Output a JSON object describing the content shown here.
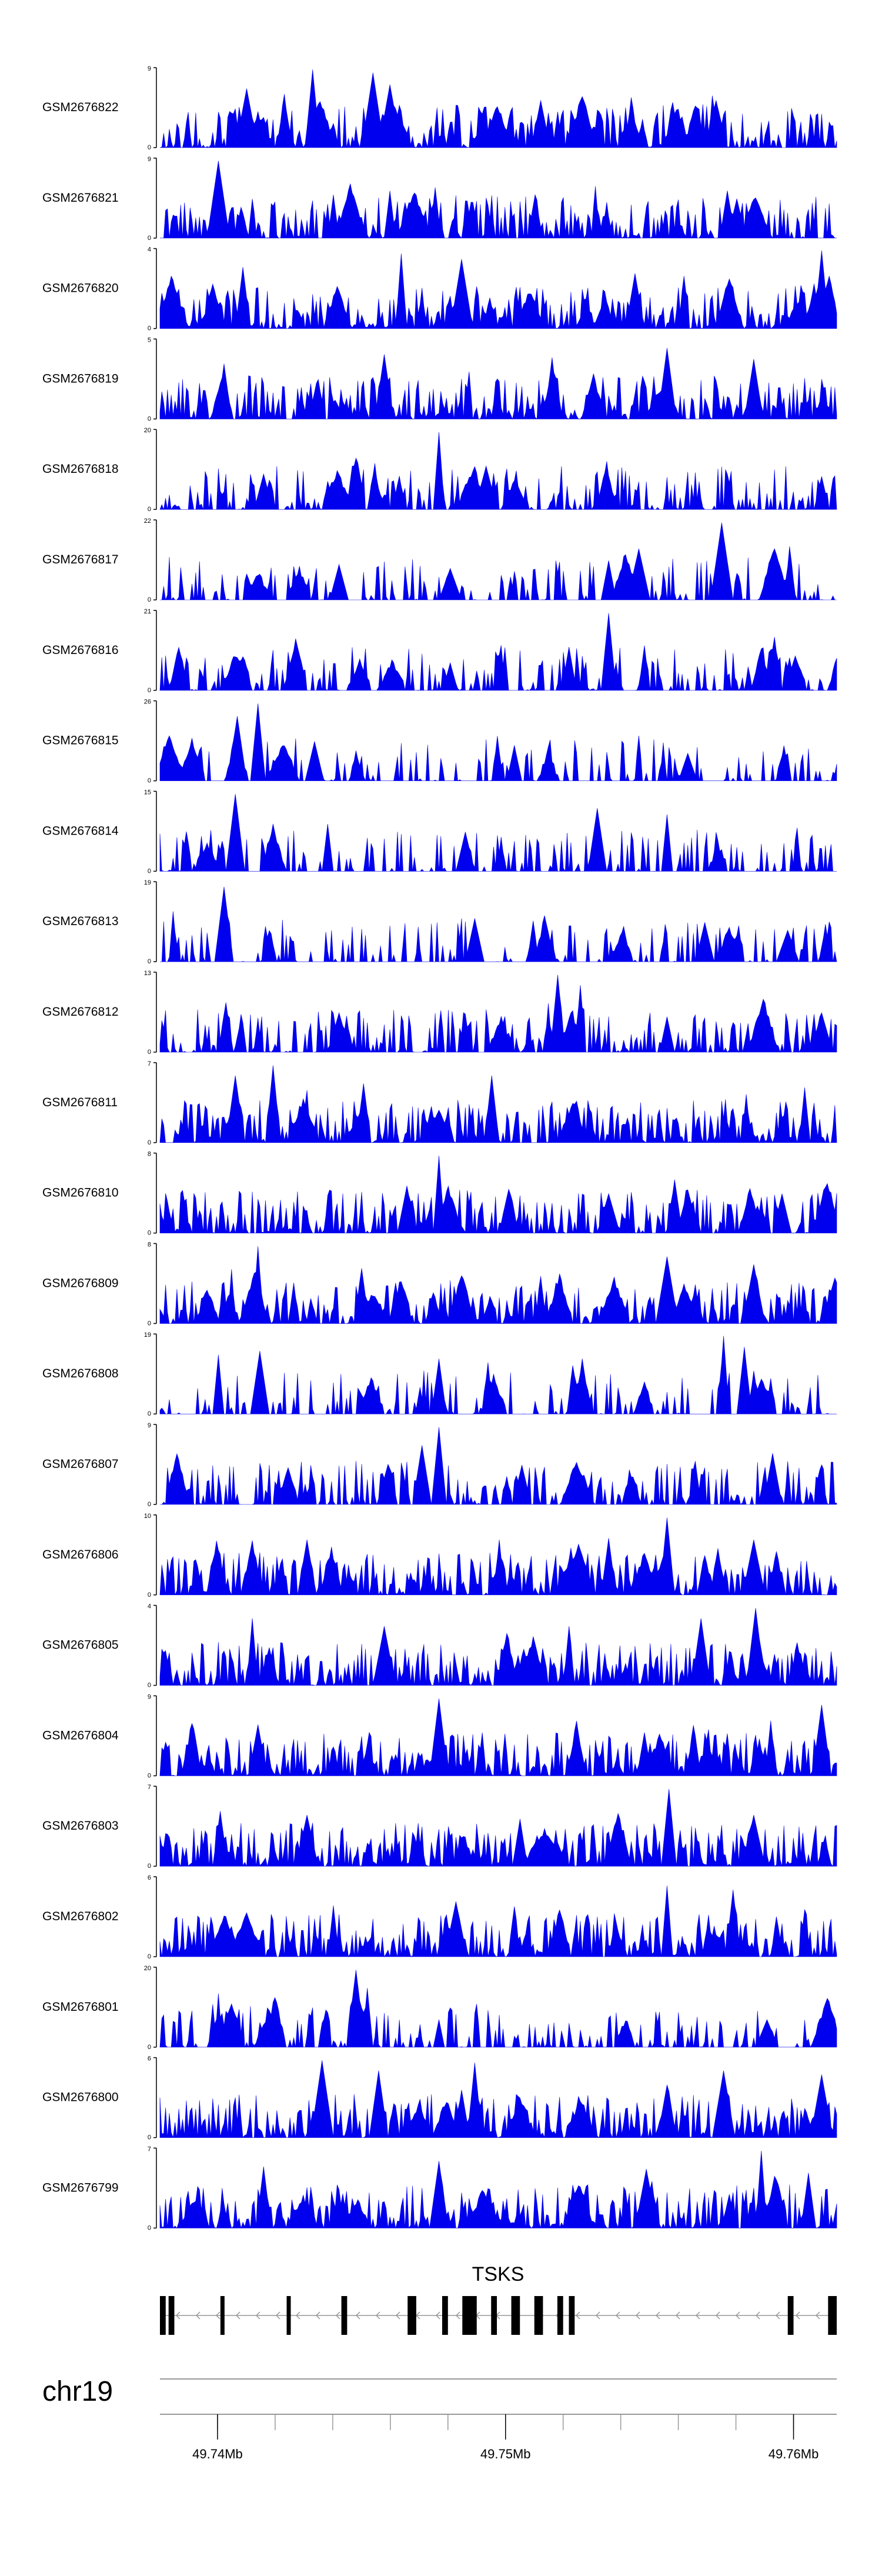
{
  "chart_data": {
    "type": "area",
    "chromosome": "chr19",
    "gene": {
      "name": "TSKS",
      "strand": "-"
    },
    "genomic_axis": {
      "range_mb": [
        49.738,
        49.7615
      ],
      "tick_labels": [
        {
          "pos": 49.74,
          "label": "49.74Mb"
        },
        {
          "pos": 49.75,
          "label": "49.75Mb"
        },
        {
          "pos": 49.76,
          "label": "49.76Mb"
        }
      ],
      "minor_ticks_mb": [
        49.74,
        49.742,
        49.744,
        49.746,
        49.748,
        49.75,
        49.752,
        49.754,
        49.756,
        49.758,
        49.76
      ]
    },
    "exons_mb": [
      [
        49.738,
        49.7382
      ],
      [
        49.7383,
        49.7385
      ],
      [
        49.7401,
        49.7402
      ],
      [
        49.7424,
        49.7425
      ],
      [
        49.7443,
        49.7445
      ],
      [
        49.7466,
        49.7469
      ],
      [
        49.7478,
        49.748
      ],
      [
        49.7485,
        49.749
      ],
      [
        49.7495,
        49.7497
      ],
      [
        49.7502,
        49.7505
      ],
      [
        49.751,
        49.7513
      ],
      [
        49.7518,
        49.752
      ],
      [
        49.7522,
        49.7524
      ],
      [
        49.7598,
        49.76
      ],
      [
        49.7612,
        49.7615
      ]
    ],
    "tracks": [
      {
        "name": "GSM2676822",
        "ymax": "9",
        "ymin": "0",
        "seed": 822,
        "density": 0.85,
        "peaks": [
          [
            49.7433,
            0.99
          ],
          [
            49.7454,
            0.95
          ],
          [
            49.746,
            0.8
          ],
          [
            49.741,
            0.75
          ],
          [
            49.7512,
            0.6
          ],
          [
            49.7573,
            0.6
          ]
        ]
      },
      {
        "name": "GSM2676821",
        "ymax": "9",
        "ymin": "0",
        "seed": 821,
        "density": 0.8,
        "peaks": [
          [
            49.74,
            0.98
          ],
          [
            49.746,
            0.6
          ],
          [
            49.744,
            0.55
          ],
          [
            49.751,
            0.55
          ],
          [
            49.758,
            0.5
          ]
        ]
      },
      {
        "name": "GSM2676820",
        "ymax": "4",
        "ymin": "0",
        "seed": 820,
        "density": 0.95,
        "peaks": [
          [
            49.761,
            0.99
          ],
          [
            49.7464,
            0.95
          ],
          [
            49.7485,
            0.88
          ],
          [
            49.7409,
            0.78
          ],
          [
            49.7545,
            0.7
          ]
        ]
      },
      {
        "name": "GSM2676819",
        "ymax": "5",
        "ymin": "0",
        "seed": 819,
        "density": 0.9,
        "peaks": [
          [
            49.7556,
            0.9
          ],
          [
            49.7458,
            0.82
          ],
          [
            49.7516,
            0.78
          ],
          [
            49.7586,
            0.76
          ],
          [
            49.7402,
            0.7
          ]
        ]
      },
      {
        "name": "GSM2676818",
        "ymax": "20",
        "ymin": "0",
        "seed": 818,
        "density": 0.55,
        "peaks": [
          [
            49.7477,
            0.98
          ],
          [
            49.7447,
            0.55
          ],
          [
            49.7493,
            0.55
          ],
          [
            49.7416,
            0.45
          ],
          [
            49.761,
            0.42
          ]
        ]
      },
      {
        "name": "GSM2676817",
        "ymax": "22",
        "ymin": "0",
        "seed": 817,
        "density": 0.35,
        "peaks": [
          [
            49.7575,
            0.98
          ],
          [
            49.7546,
            0.65
          ],
          [
            49.7536,
            0.5
          ],
          [
            49.7442,
            0.45
          ],
          [
            49.7481,
            0.4
          ]
        ]
      },
      {
        "name": "GSM2676816",
        "ymax": "21",
        "ymin": "0",
        "seed": 816,
        "density": 0.5,
        "peaks": [
          [
            49.7536,
            0.98
          ],
          [
            49.7522,
            0.55
          ],
          [
            49.7409,
            0.35
          ],
          [
            49.7481,
            0.35
          ]
        ]
      },
      {
        "name": "GSM2676815",
        "ymax": "26",
        "ymin": "0",
        "seed": 815,
        "density": 0.3,
        "peaks": [
          [
            49.7414,
            0.98
          ],
          [
            49.7407,
            0.82
          ],
          [
            49.7434,
            0.5
          ],
          [
            49.7503,
            0.45
          ],
          [
            49.7563,
            0.35
          ]
        ]
      },
      {
        "name": "GSM2676814",
        "ymax": "15",
        "ymin": "0",
        "seed": 814,
        "density": 0.45,
        "peaks": [
          [
            49.7406,
            0.98
          ],
          [
            49.7532,
            0.8
          ],
          [
            49.7556,
            0.72
          ],
          [
            49.7438,
            0.6
          ],
          [
            49.7486,
            0.5
          ]
        ]
      },
      {
        "name": "GSM2676813",
        "ymax": "19",
        "ymin": "0",
        "seed": 813,
        "density": 0.35,
        "peaks": [
          [
            49.7402,
            0.95
          ],
          [
            49.7489,
            0.55
          ],
          [
            49.7541,
            0.45
          ],
          [
            49.7569,
            0.5
          ],
          [
            49.7598,
            0.4
          ]
        ]
      },
      {
        "name": "GSM2676812",
        "ymax": "13",
        "ymin": "0",
        "seed": 812,
        "density": 0.6,
        "peaks": [
          [
            49.7518,
            0.98
          ],
          [
            49.7526,
            0.85
          ],
          [
            49.761,
            0.5
          ],
          [
            49.7442,
            0.5
          ],
          [
            49.7556,
            0.45
          ]
        ]
      },
      {
        "name": "GSM2676811",
        "ymax": "7",
        "ymin": "0",
        "seed": 811,
        "density": 0.85,
        "peaks": [
          [
            49.7419,
            0.98
          ],
          [
            49.7406,
            0.85
          ],
          [
            49.7495,
            0.85
          ],
          [
            49.7451,
            0.75
          ],
          [
            49.7604,
            0.7
          ]
        ]
      },
      {
        "name": "GSM2676810",
        "ymax": "8",
        "ymin": "0",
        "seed": 810,
        "density": 0.85,
        "peaks": [
          [
            49.7477,
            0.98
          ],
          [
            49.7466,
            0.6
          ],
          [
            49.7563,
            0.55
          ],
          [
            49.7536,
            0.5
          ],
          [
            49.7596,
            0.5
          ]
        ]
      },
      {
        "name": "GSM2676809",
        "ymax": "8",
        "ymin": "0",
        "seed": 809,
        "density": 0.9,
        "peaks": [
          [
            49.7414,
            0.98
          ],
          [
            49.7556,
            0.85
          ],
          [
            49.7586,
            0.75
          ],
          [
            49.745,
            0.7
          ],
          [
            49.7512,
            0.6
          ]
        ]
      },
      {
        "name": "GSM2676808",
        "ymax": "19",
        "ymin": "0",
        "seed": 808,
        "density": 0.4,
        "peaks": [
          [
            49.7576,
            0.99
          ],
          [
            49.7583,
            0.85
          ],
          [
            49.7415,
            0.8
          ],
          [
            49.74,
            0.75
          ],
          [
            49.7477,
            0.7
          ]
        ]
      },
      {
        "name": "GSM2676807",
        "ymax": "9",
        "ymin": "0",
        "seed": 807,
        "density": 0.7,
        "peaks": [
          [
            49.7477,
            0.98
          ],
          [
            49.7471,
            0.75
          ],
          [
            49.7593,
            0.65
          ],
          [
            49.7506,
            0.5
          ],
          [
            49.7566,
            0.55
          ]
        ]
      },
      {
        "name": "GSM2676806",
        "ymax": "10",
        "ymin": "0",
        "seed": 806,
        "density": 0.85,
        "peaks": [
          [
            49.7556,
            0.98
          ],
          [
            49.7431,
            0.7
          ],
          [
            49.7498,
            0.7
          ],
          [
            49.7536,
            0.72
          ],
          [
            49.7586,
            0.7
          ]
        ]
      },
      {
        "name": "GSM2676805",
        "ymax": "4",
        "ymin": "0",
        "seed": 805,
        "density": 0.9,
        "peaks": [
          [
            49.7587,
            0.98
          ],
          [
            49.7412,
            0.85
          ],
          [
            49.7568,
            0.85
          ],
          [
            49.7458,
            0.75
          ],
          [
            49.7522,
            0.75
          ]
        ]
      },
      {
        "name": "GSM2676804",
        "ymax": "9",
        "ymin": "0",
        "seed": 804,
        "density": 0.9,
        "peaks": [
          [
            49.7477,
            0.98
          ],
          [
            49.761,
            0.9
          ],
          [
            49.7592,
            0.7
          ],
          [
            49.7414,
            0.65
          ],
          [
            49.7548,
            0.55
          ]
        ]
      },
      {
        "name": "GSM2676803",
        "ymax": "7",
        "ymin": "0",
        "seed": 803,
        "density": 0.95,
        "peaks": [
          [
            49.7557,
            0.98
          ],
          [
            49.7401,
            0.7
          ],
          [
            49.7431,
            0.65
          ],
          [
            49.7586,
            0.65
          ],
          [
            49.7505,
            0.6
          ]
        ]
      },
      {
        "name": "GSM2676802",
        "ymax": "6",
        "ymin": "0",
        "seed": 802,
        "density": 0.9,
        "peaks": [
          [
            49.7556,
            0.9
          ],
          [
            49.7579,
            0.85
          ],
          [
            49.7483,
            0.7
          ],
          [
            49.744,
            0.65
          ],
          [
            49.7604,
            0.6
          ]
        ]
      },
      {
        "name": "GSM2676801",
        "ymax": "20",
        "ymin": "0",
        "seed": 801,
        "density": 0.5,
        "peaks": [
          [
            49.7448,
            0.98
          ],
          [
            49.7452,
            0.75
          ],
          [
            49.7477,
            0.35
          ],
          [
            49.7591,
            0.35
          ]
        ]
      },
      {
        "name": "GSM2676800",
        "ymax": "6",
        "ymin": "0",
        "seed": 800,
        "density": 0.9,
        "peaks": [
          [
            49.7436,
            0.98
          ],
          [
            49.7489,
            0.95
          ],
          [
            49.7456,
            0.85
          ],
          [
            49.7576,
            0.85
          ],
          [
            49.761,
            0.8
          ]
        ]
      },
      {
        "name": "GSM2676799",
        "ymax": "7",
        "ymin": "0",
        "seed": 799,
        "density": 0.9,
        "peaks": [
          [
            49.7589,
            0.98
          ],
          [
            49.7477,
            0.85
          ],
          [
            49.7416,
            0.78
          ],
          [
            49.7549,
            0.75
          ],
          [
            49.7605,
            0.7
          ]
        ]
      }
    ]
  },
  "colors": {
    "signal": "#0000ee",
    "axis": "#000000",
    "gene": "#000000",
    "guide": "#999999"
  }
}
